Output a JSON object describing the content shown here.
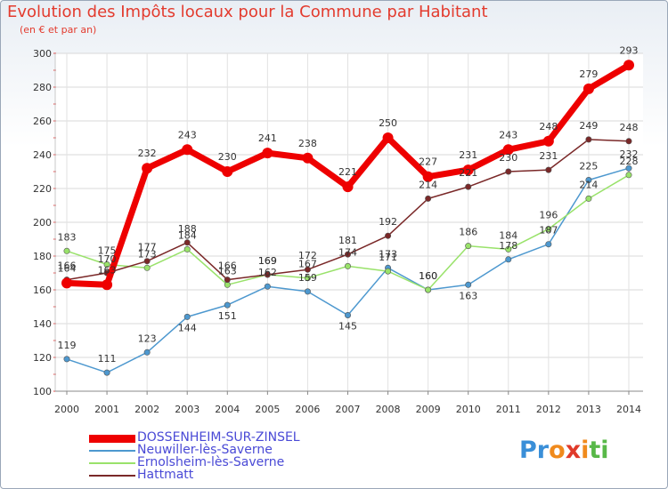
{
  "title": "Evolution des Impôts locaux pour la Commune par Habitant",
  "subtitle": "(en € et par an)",
  "logo": {
    "letters": [
      "P",
      "r",
      "o",
      "x",
      "i",
      "t",
      "i"
    ],
    "colors": [
      "#3a8fd8",
      "#3a8fd8",
      "#f08a1c",
      "#e03a2a",
      "#f08a1c",
      "#58b848",
      "#58b848"
    ]
  },
  "chart_data": {
    "type": "line",
    "title": "Evolution des Impôts locaux pour la Commune par Habitant",
    "ylabel": "(en € et par an)",
    "x": [
      "2000",
      "2001",
      "2002",
      "2003",
      "2004",
      "2005",
      "2006",
      "2007",
      "2008",
      "2009",
      "2010",
      "2011",
      "2012",
      "2013",
      "2014"
    ],
    "yticks": [
      100,
      120,
      140,
      160,
      180,
      200,
      220,
      240,
      260,
      280,
      300
    ],
    "ylim": [
      100,
      300
    ],
    "grid": true,
    "legend_position": "bottom-left",
    "series": [
      {
        "name": "DOSSENHEIM-SUR-ZINSEL",
        "color": "#ee0000",
        "values": [
          164,
          163,
          232,
          243,
          230,
          241,
          238,
          221,
          250,
          227,
          231,
          243,
          248,
          279,
          293
        ]
      },
      {
        "name": "Neuwiller-lès-Saverne",
        "color": "#4d98cf",
        "values": [
          119,
          111,
          123,
          144,
          151,
          162,
          159,
          145,
          173,
          160,
          163,
          178,
          187,
          225,
          232
        ]
      },
      {
        "name": "Ernolsheim-lès-Saverne",
        "color": "#99e26a",
        "values": [
          183,
          175,
          173,
          184,
          163,
          169,
          167,
          174,
          171,
          160,
          186,
          184,
          196,
          214,
          228
        ]
      },
      {
        "name": "Hattmatt",
        "color": "#7a2828",
        "values": [
          166,
          170,
          177,
          188,
          166,
          169,
          172,
          181,
          192,
          214,
          221,
          230,
          231,
          249,
          248
        ]
      }
    ]
  }
}
